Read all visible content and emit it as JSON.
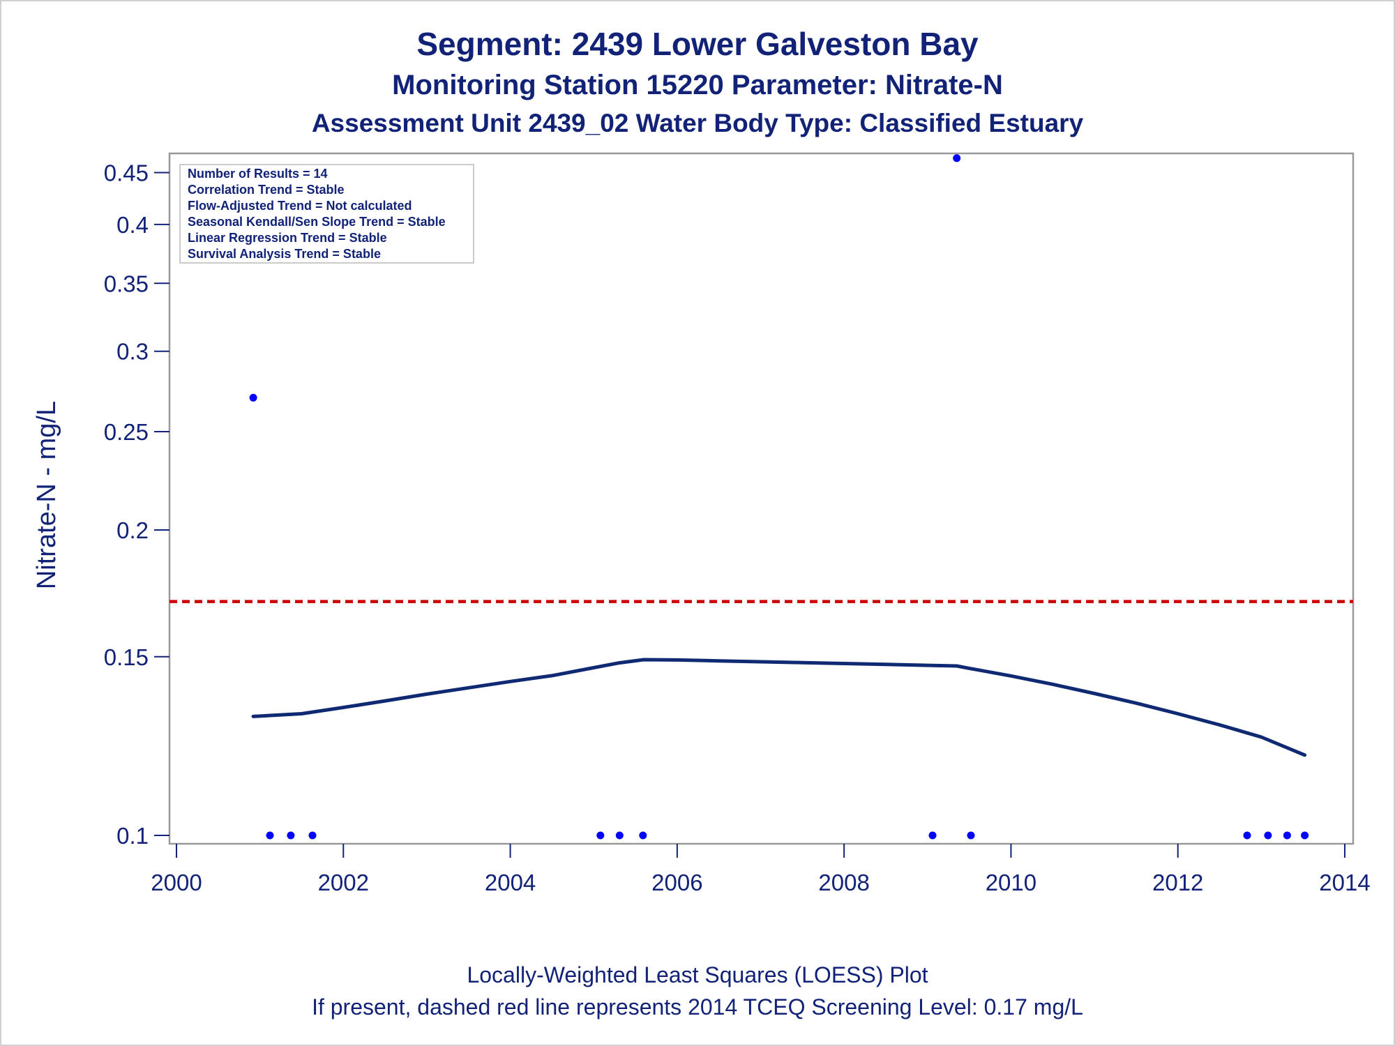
{
  "title": "Segment: 2439  Lower Galveston Bay",
  "subtitle": "Monitoring Station 15220 Parameter: Nitrate-N",
  "subtitle2": "Assessment Unit 2439_02   Water Body Type: Classified Estuary",
  "footnotes": [
    "Locally-Weighted Least Squares (LOESS) Plot",
    "If present, dashed red line represents 2014 TCEQ Screening Level: 0.17 mg/L"
  ],
  "stats_box": [
    "Number of Results = 14",
    "Correlation Trend = Stable",
    "Flow-Adjusted Trend = Not calculated",
    "Seasonal Kendall/Sen Slope Trend = Stable",
    "Linear Regression Trend = Stable",
    "Survival Analysis Trend = Stable"
  ],
  "colors": {
    "text": "#112277",
    "points": "#0000ff",
    "loess": "#0f2a73",
    "screening": "#cc0000",
    "axis": "#999999"
  },
  "chart_data": {
    "type": "scatter",
    "ylabel": "Nitrate-N - mg/L",
    "xlabel": "",
    "x_scale": "linear",
    "y_scale": "log",
    "xlim": [
      2000,
      2014
    ],
    "ylim": [
      0.1,
      0.47
    ],
    "x_ticks": [
      2000,
      2002,
      2004,
      2006,
      2008,
      2010,
      2012,
      2014
    ],
    "y_ticks": [
      0.1,
      0.15,
      0.2,
      0.25,
      0.3,
      0.35,
      0.4,
      0.45
    ],
    "x_tick_labels": [
      "2000",
      "2002",
      "2004",
      "2006",
      "2008",
      "2010",
      "2012",
      "2014"
    ],
    "y_tick_labels": [
      "0.1",
      "0.15",
      "0.2",
      "0.25",
      "0.3",
      "0.35",
      "0.4",
      "0.45"
    ],
    "screening_level": 0.17,
    "series": [
      {
        "name": "Nitrate-N",
        "type": "scatter",
        "x": [
          2000.92,
          2001.12,
          2001.37,
          2001.63,
          2005.08,
          2005.31,
          2005.59,
          2009.06,
          2009.35,
          2009.52,
          2012.83,
          2013.08,
          2013.31,
          2013.52
        ],
        "y": [
          0.27,
          0.1,
          0.1,
          0.1,
          0.1,
          0.1,
          0.1,
          0.1,
          0.465,
          0.1,
          0.1,
          0.1,
          0.1,
          0.1
        ]
      },
      {
        "name": "LOESS",
        "type": "line",
        "x": [
          2000.92,
          2001.5,
          2002.0,
          2002.5,
          2003.0,
          2003.5,
          2004.0,
          2004.5,
          2005.0,
          2005.3,
          2005.6,
          2006.0,
          2006.5,
          2007.0,
          2007.5,
          2008.0,
          2008.5,
          2009.0,
          2009.35,
          2009.5,
          2010.0,
          2010.5,
          2011.0,
          2011.5,
          2012.0,
          2012.5,
          2013.0,
          2013.52
        ],
        "y": [
          0.131,
          0.1318,
          0.1337,
          0.1357,
          0.1378,
          0.1398,
          0.1418,
          0.1437,
          0.1463,
          0.1479,
          0.149,
          0.1489,
          0.1486,
          0.1483,
          0.148,
          0.1477,
          0.1474,
          0.1471,
          0.1469,
          0.1461,
          0.1436,
          0.1409,
          0.138,
          0.135,
          0.1318,
          0.1285,
          0.125,
          0.12
        ]
      }
    ]
  }
}
